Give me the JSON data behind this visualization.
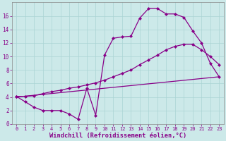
{
  "xlabel": "Windchill (Refroidissement éolien,°C)",
  "xlim": [
    -0.5,
    23.5
  ],
  "ylim": [
    0,
    18
  ],
  "xticks": [
    0,
    1,
    2,
    3,
    4,
    5,
    6,
    7,
    8,
    9,
    10,
    11,
    12,
    13,
    14,
    15,
    16,
    17,
    18,
    19,
    20,
    21,
    22,
    23
  ],
  "yticks": [
    0,
    2,
    4,
    6,
    8,
    10,
    12,
    14,
    16
  ],
  "bg_color": "#cce9e9",
  "grid_color": "#aad4d4",
  "line_color": "#880088",
  "line1_x": [
    0,
    1,
    2,
    3,
    4,
    5,
    6,
    7,
    8,
    9,
    10,
    11,
    12,
    13,
    14,
    15,
    16,
    17,
    18,
    19,
    20,
    21,
    22,
    23
  ],
  "line1_y": [
    4.1,
    3.3,
    2.5,
    2.0,
    2.0,
    2.0,
    1.5,
    0.7,
    5.3,
    1.3,
    10.2,
    12.7,
    12.9,
    13.0,
    15.7,
    17.1,
    17.1,
    16.3,
    16.3,
    15.8,
    13.8,
    12.0,
    9.0,
    7.0
  ],
  "line2_x": [
    0,
    23
  ],
  "line2_y": [
    4.0,
    7.0
  ],
  "line3_x": [
    0,
    1,
    2,
    3,
    4,
    5,
    6,
    7,
    8,
    9,
    10,
    11,
    12,
    13,
    14,
    15,
    16,
    17,
    18,
    19,
    20,
    21,
    22,
    23
  ],
  "line3_y": [
    4.1,
    4.1,
    4.2,
    4.5,
    4.8,
    5.0,
    5.3,
    5.5,
    5.8,
    6.1,
    6.5,
    7.0,
    7.5,
    8.0,
    8.8,
    9.5,
    10.2,
    11.0,
    11.5,
    11.8,
    11.8,
    11.0,
    10.0,
    8.8
  ]
}
